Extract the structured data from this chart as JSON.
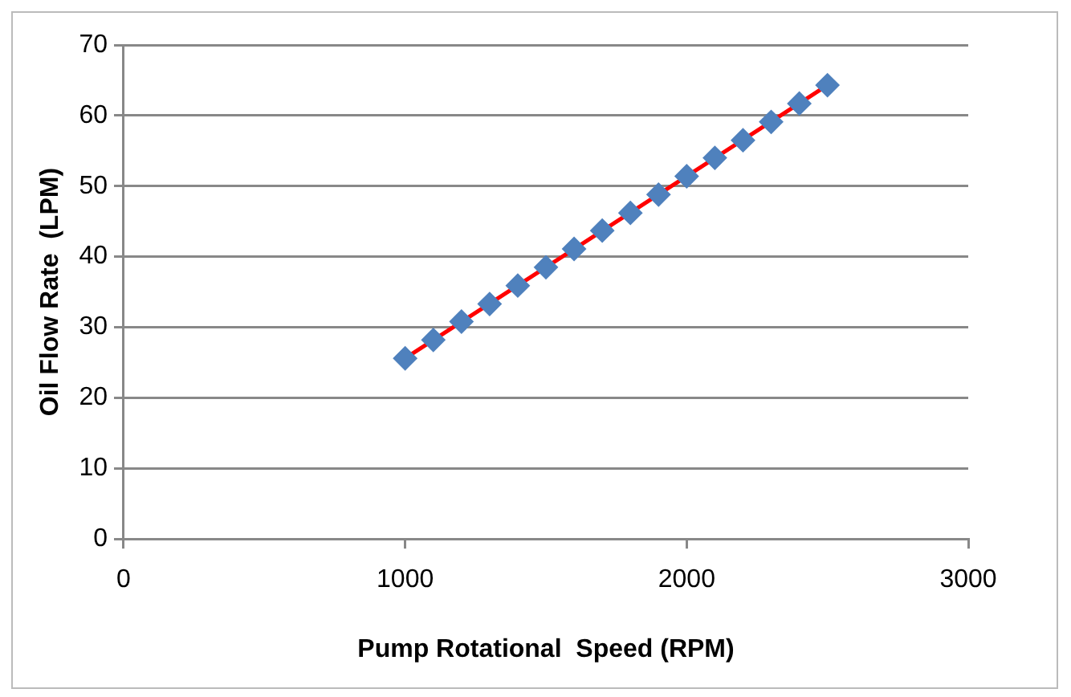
{
  "chart_data": {
    "type": "scatter",
    "xlabel": "Pump Rotational  Speed (RPM)",
    "ylabel": "Oil Flow Rate  (LPM)",
    "x": [
      1000,
      1100,
      1200,
      1300,
      1400,
      1500,
      1600,
      1700,
      1800,
      1900,
      2000,
      2100,
      2200,
      2300,
      2400,
      2500
    ],
    "series": [
      {
        "color": "#4f81bd",
        "marker": "diamond",
        "values": [
          25.6,
          28.2,
          30.8,
          33.3,
          35.9,
          38.5,
          41.1,
          43.7,
          46.2,
          48.8,
          51.4,
          54.0,
          56.5,
          59.1,
          61.7,
          64.3
        ]
      },
      {
        "type": "line",
        "color": "#ff0000",
        "marker": "none",
        "x": [
          1000,
          2500
        ],
        "values": [
          25.6,
          64.3
        ]
      }
    ],
    "xlim": [
      0,
      3000
    ],
    "xticks": [
      0,
      1000,
      2000,
      3000
    ],
    "ylim": [
      0,
      70
    ],
    "yticks": [
      0,
      10,
      20,
      30,
      40,
      50,
      60,
      70
    ],
    "grid": "y",
    "legend": false
  }
}
